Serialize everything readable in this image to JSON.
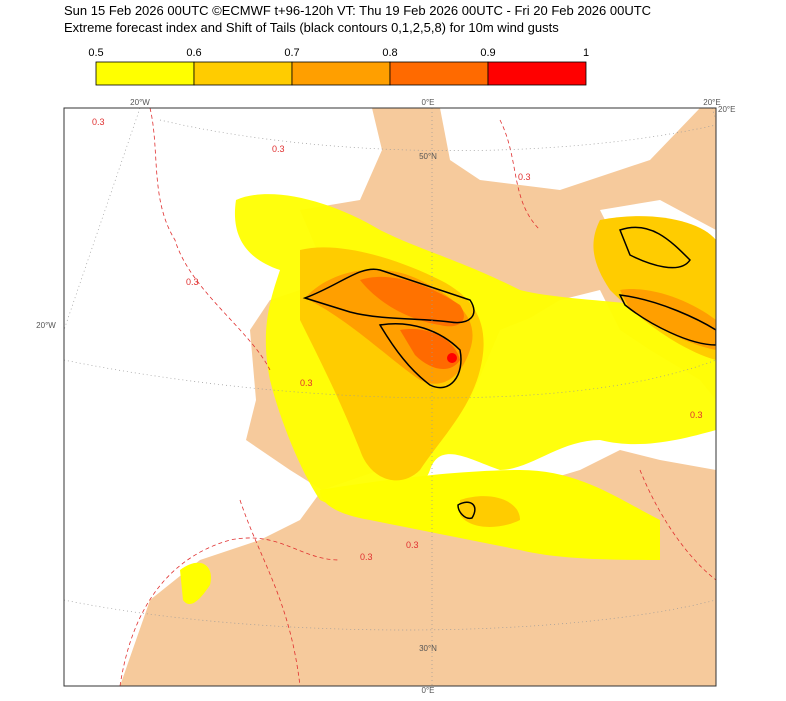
{
  "header": {
    "line1": "Sun 15 Feb 2026 00UTC ©ECMWF t+96-120h  VT: Thu 19 Feb 2026 00UTC - Fri 20 Feb 2026 00UTC",
    "line2": "Extreme forecast index and Shift of Tails (black contours 0,1,2,5,8) for 10m wind gusts"
  },
  "colorbar": {
    "ticks": [
      "0.5",
      "0.6",
      "0.7",
      "0.8",
      "0.9",
      "1"
    ],
    "colors": [
      "#ffff00",
      "#ffcc00",
      "#ff9f00",
      "#ff6a00",
      "#ff0000"
    ]
  },
  "map": {
    "grid_labels": [
      "20°W",
      "0°E",
      "20°E",
      "20°E",
      "50°N",
      "20°W",
      "30°N",
      "0°E"
    ],
    "contour_labels": [
      "0.3",
      "0.3",
      "0.3",
      "0.3",
      "0.3",
      "0.3",
      "0.3",
      "0.3"
    ]
  }
}
